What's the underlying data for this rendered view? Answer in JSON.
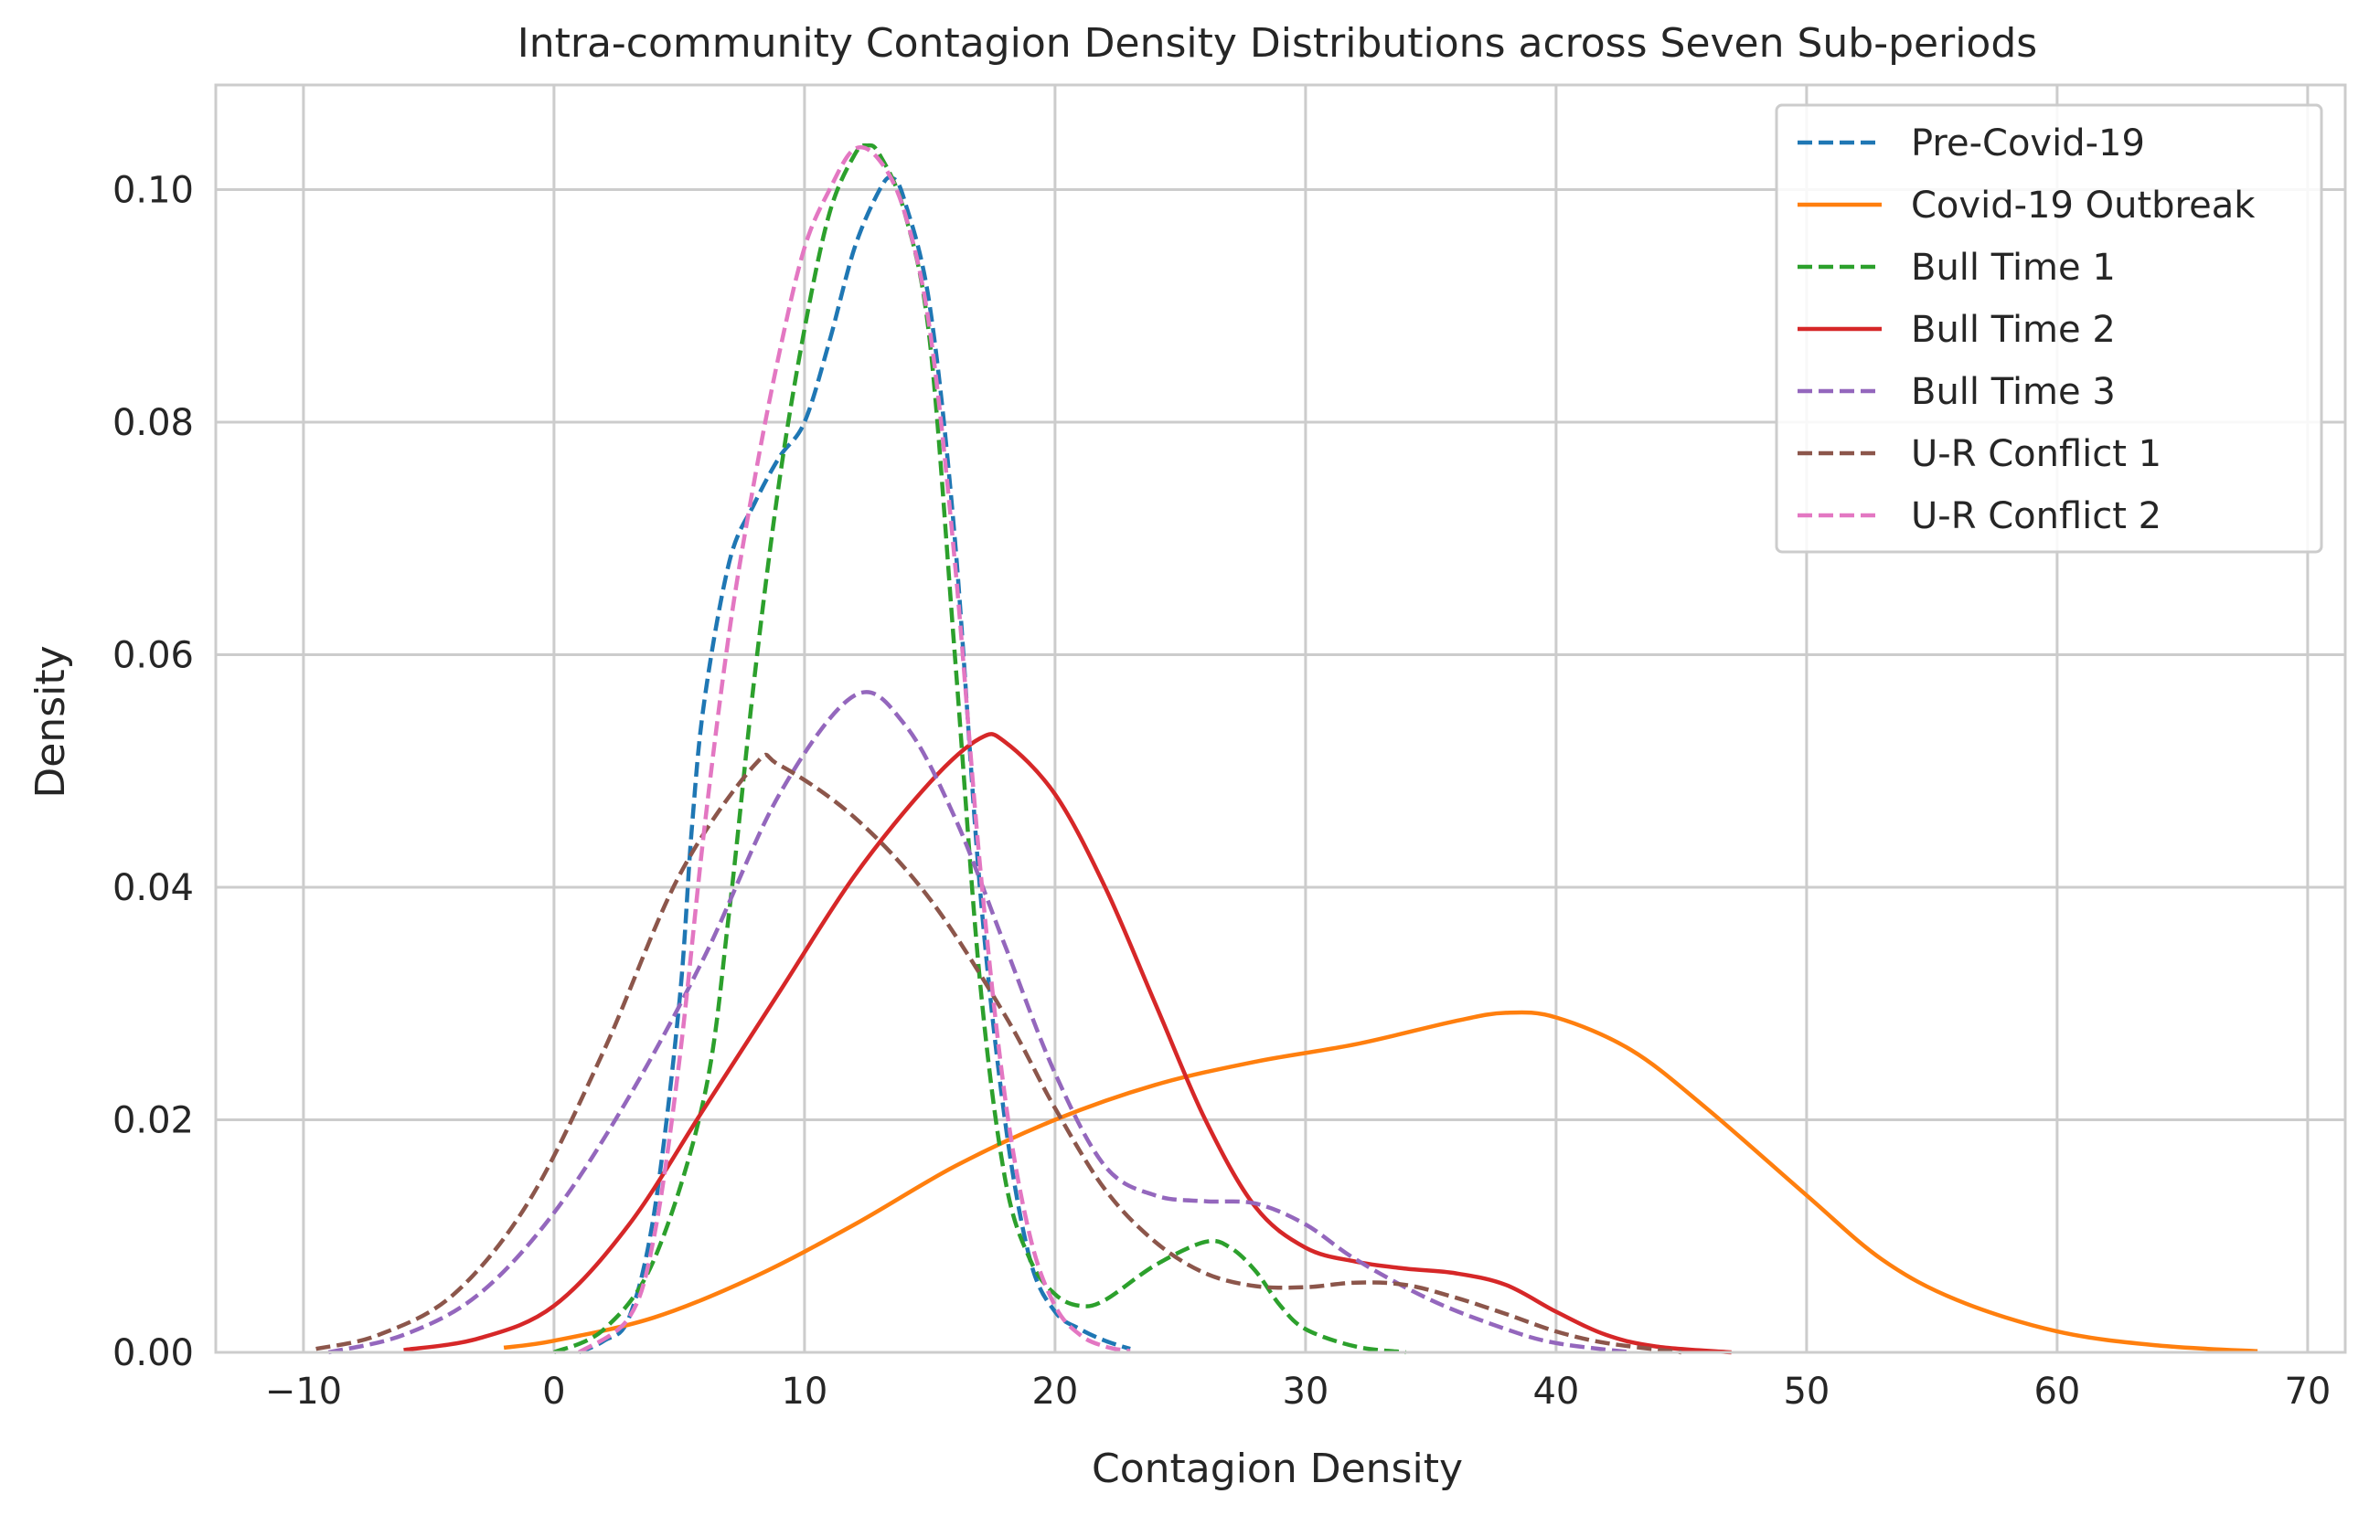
{
  "chart_data": {
    "type": "line",
    "title": "Intra-community Contagion Density Distributions across Seven Sub-periods",
    "xlabel": "Contagion Density",
    "ylabel": "Density",
    "xlim": [
      -13.5,
      71.5
    ],
    "ylim": [
      0,
      0.109
    ],
    "x_ticks": [
      -10,
      0,
      10,
      20,
      30,
      40,
      50,
      60,
      70
    ],
    "x_tick_labels": [
      "−10",
      "0",
      "10",
      "20",
      "30",
      "40",
      "50",
      "60",
      "70"
    ],
    "y_ticks": [
      0,
      0.02,
      0.04,
      0.06,
      0.08,
      0.1
    ],
    "y_tick_labels": [
      "0.00",
      "0.02",
      "0.04",
      "0.06",
      "0.08",
      "0.10"
    ],
    "grid": true,
    "legend_position": "top-right",
    "series": [
      {
        "name": "Pre-Covid-19",
        "color": "#1f77b4",
        "dashed": true,
        "points": [
          [
            1,
            0
          ],
          [
            2,
            0.001
          ],
          [
            3,
            0.003
          ],
          [
            4,
            0.012
          ],
          [
            5,
            0.03
          ],
          [
            5.5,
            0.045
          ],
          [
            6,
            0.056
          ],
          [
            7,
            0.068
          ],
          [
            8,
            0.073
          ],
          [
            9,
            0.077
          ],
          [
            10,
            0.08
          ],
          [
            11,
            0.087
          ],
          [
            12,
            0.095
          ],
          [
            13,
            0.1
          ],
          [
            13.5,
            0.101
          ],
          [
            14,
            0.099
          ],
          [
            15,
            0.09
          ],
          [
            16,
            0.07
          ],
          [
            17,
            0.04
          ],
          [
            18,
            0.02
          ],
          [
            19,
            0.008
          ],
          [
            20,
            0.0035
          ],
          [
            21,
            0.002
          ],
          [
            22,
            0.001
          ],
          [
            23,
            0.0003
          ]
        ]
      },
      {
        "name": "Covid-19 Outbreak",
        "color": "#ff7f0e",
        "dashed": false,
        "points": [
          [
            -2,
            0.0004
          ],
          [
            0,
            0.001
          ],
          [
            4,
            0.003
          ],
          [
            8,
            0.0065
          ],
          [
            12,
            0.011
          ],
          [
            16,
            0.016
          ],
          [
            20,
            0.02
          ],
          [
            24,
            0.023
          ],
          [
            28,
            0.025
          ],
          [
            32,
            0.0265
          ],
          [
            36,
            0.0285
          ],
          [
            38,
            0.0292
          ],
          [
            40,
            0.0288
          ],
          [
            43,
            0.026
          ],
          [
            46,
            0.021
          ],
          [
            50,
            0.0135
          ],
          [
            53,
            0.008
          ],
          [
            56,
            0.0045
          ],
          [
            60,
            0.0018
          ],
          [
            64,
            0.0006
          ],
          [
            68,
            0.0001
          ]
        ]
      },
      {
        "name": "Bull Time 1",
        "color": "#2ca02c",
        "dashed": true,
        "points": [
          [
            0,
            0
          ],
          [
            2,
            0.002
          ],
          [
            4,
            0.008
          ],
          [
            6,
            0.022
          ],
          [
            7,
            0.038
          ],
          [
            8,
            0.058
          ],
          [
            9,
            0.075
          ],
          [
            10,
            0.088
          ],
          [
            11,
            0.098
          ],
          [
            12,
            0.103
          ],
          [
            12.5,
            0.1038
          ],
          [
            13,
            0.103
          ],
          [
            14,
            0.098
          ],
          [
            15,
            0.087
          ],
          [
            16,
            0.06
          ],
          [
            17,
            0.032
          ],
          [
            18,
            0.015
          ],
          [
            19,
            0.008
          ],
          [
            20,
            0.005
          ],
          [
            21,
            0.004
          ],
          [
            22,
            0.0045
          ],
          [
            24,
            0.0075
          ],
          [
            26,
            0.0095
          ],
          [
            27,
            0.009
          ],
          [
            28,
            0.007
          ],
          [
            29,
            0.004
          ],
          [
            30,
            0.002
          ],
          [
            32,
            0.0005
          ],
          [
            34,
            0
          ]
        ]
      },
      {
        "name": "Bull Time 2",
        "color": "#d62728",
        "dashed": false,
        "points": [
          [
            -6,
            0.0002
          ],
          [
            -3,
            0.0012
          ],
          [
            0,
            0.004
          ],
          [
            3,
            0.011
          ],
          [
            6,
            0.021
          ],
          [
            9,
            0.031
          ],
          [
            12,
            0.041
          ],
          [
            15,
            0.049
          ],
          [
            17,
            0.0528
          ],
          [
            18,
            0.0525
          ],
          [
            20,
            0.048
          ],
          [
            22,
            0.04
          ],
          [
            24,
            0.03
          ],
          [
            26,
            0.02
          ],
          [
            28,
            0.0125
          ],
          [
            30,
            0.009
          ],
          [
            32,
            0.0078
          ],
          [
            34,
            0.0072
          ],
          [
            36,
            0.0068
          ],
          [
            38,
            0.0058
          ],
          [
            40,
            0.0035
          ],
          [
            42,
            0.0015
          ],
          [
            44,
            0.0005
          ],
          [
            47,
            0
          ]
        ]
      },
      {
        "name": "Bull Time 3",
        "color": "#9467bd",
        "dashed": true,
        "points": [
          [
            -9,
            0
          ],
          [
            -6,
            0.0015
          ],
          [
            -3,
            0.005
          ],
          [
            0,
            0.012
          ],
          [
            3,
            0.022
          ],
          [
            6,
            0.034
          ],
          [
            9,
            0.048
          ],
          [
            12,
            0.0565
          ],
          [
            14,
            0.054
          ],
          [
            16,
            0.046
          ],
          [
            18,
            0.035
          ],
          [
            20,
            0.024
          ],
          [
            22,
            0.016
          ],
          [
            24,
            0.0135
          ],
          [
            26,
            0.013
          ],
          [
            28,
            0.0128
          ],
          [
            30,
            0.011
          ],
          [
            32,
            0.008
          ],
          [
            35,
            0.0045
          ],
          [
            38,
            0.002
          ],
          [
            40,
            0.0008
          ],
          [
            43,
            0
          ]
        ]
      },
      {
        "name": "U-R Conflict 1",
        "color": "#8c564b",
        "dashed": true,
        "points": [
          [
            -9.5,
            0.0003
          ],
          [
            -7,
            0.0015
          ],
          [
            -4,
            0.005
          ],
          [
            -1,
            0.013
          ],
          [
            2,
            0.026
          ],
          [
            5,
            0.041
          ],
          [
            8,
            0.0505
          ],
          [
            9,
            0.0505
          ],
          [
            12,
            0.046
          ],
          [
            15,
            0.039
          ],
          [
            18,
            0.029
          ],
          [
            20,
            0.021
          ],
          [
            22,
            0.014
          ],
          [
            24,
            0.0095
          ],
          [
            26,
            0.0068
          ],
          [
            28,
            0.0057
          ],
          [
            30,
            0.0056
          ],
          [
            32,
            0.006
          ],
          [
            34,
            0.0058
          ],
          [
            36,
            0.0047
          ],
          [
            38,
            0.0033
          ],
          [
            40,
            0.0018
          ],
          [
            42,
            0.0008
          ],
          [
            45,
            0
          ]
        ]
      },
      {
        "name": "U-R Conflict 2",
        "color": "#e377c2",
        "dashed": true,
        "points": [
          [
            1,
            0
          ],
          [
            3,
            0.003
          ],
          [
            4,
            0.01
          ],
          [
            5,
            0.025
          ],
          [
            6,
            0.045
          ],
          [
            7,
            0.062
          ],
          [
            8,
            0.075
          ],
          [
            9,
            0.086
          ],
          [
            10,
            0.095
          ],
          [
            11,
            0.1
          ],
          [
            12,
            0.1035
          ],
          [
            13,
            0.1025
          ],
          [
            14,
            0.098
          ],
          [
            15,
            0.088
          ],
          [
            16,
            0.068
          ],
          [
            17,
            0.042
          ],
          [
            18,
            0.022
          ],
          [
            19,
            0.01
          ],
          [
            20,
            0.004
          ],
          [
            21,
            0.0015
          ],
          [
            22,
            0.0005
          ],
          [
            23,
            0.0001
          ]
        ]
      }
    ]
  }
}
